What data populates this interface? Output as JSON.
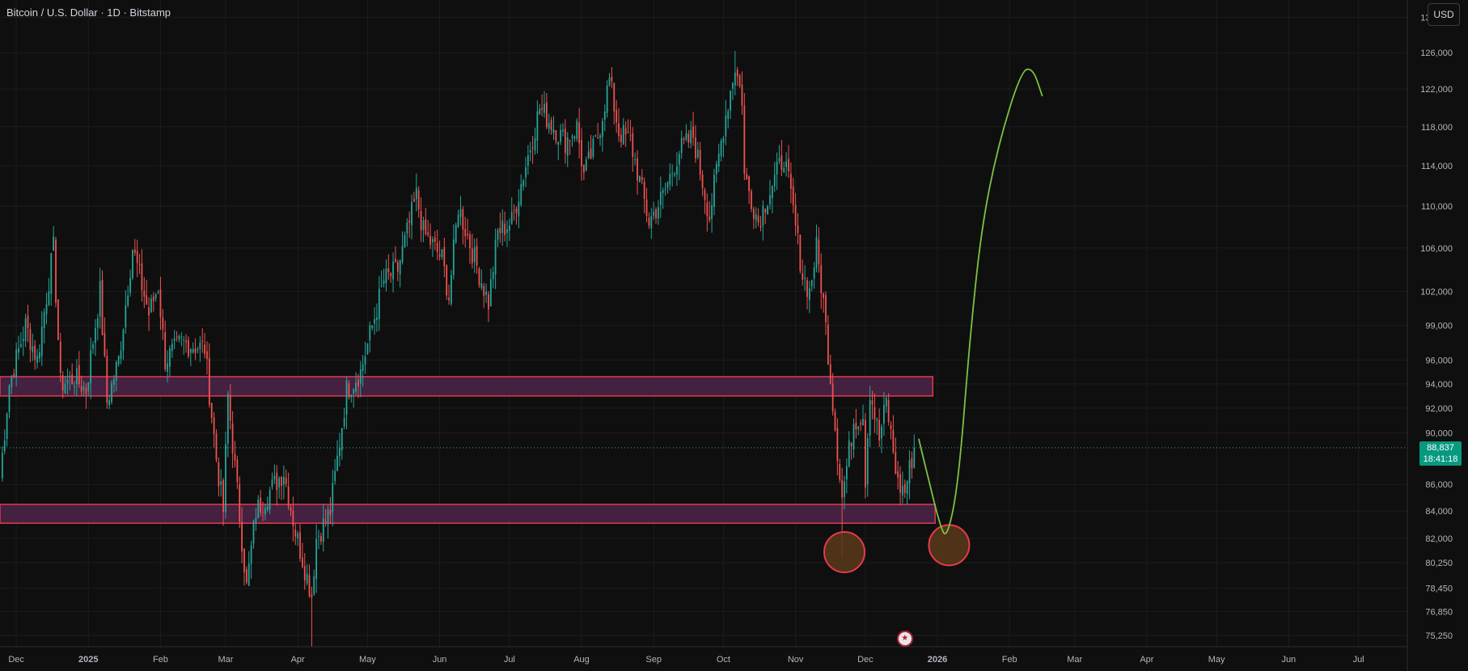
{
  "header": {
    "title": "Bitcoin / U.S. Dollar · 1D · Bitstamp",
    "currency_button": "USD"
  },
  "last_price": {
    "price": "88,837",
    "countdown": "18:41:18",
    "color": "#089981"
  },
  "colors": {
    "up": "#26a69a",
    "down": "#ef5350",
    "zone_fill": "#4a2446",
    "zone_border": "#e0394e",
    "projection": "#7cc242",
    "background": "#0f0f0f",
    "grid": "#1c1c1c"
  },
  "icons": {
    "event": "us-flag-economic-event-icon"
  },
  "chart_data": {
    "type": "candlestick",
    "title": "Bitcoin / U.S. Dollar · 1D · Bitstamp",
    "y_scale": "log",
    "ylim": [
      74500,
      132000
    ],
    "xlim": [
      "2024-11-24",
      "2026-07-22"
    ],
    "y_ticks": [
      "130,000",
      "126,000",
      "122,000",
      "118,000",
      "114,000",
      "110,000",
      "106,000",
      "102,000",
      "99,000",
      "96,000",
      "94,000",
      "92,000",
      "90,000",
      "86,000",
      "84,000",
      "82,000",
      "80,250",
      "78,450",
      "76,850",
      "75,250"
    ],
    "x_ticks": [
      {
        "label": "Dec",
        "date": "2024-12-01"
      },
      {
        "label": "2025",
        "date": "2025-01-01"
      },
      {
        "label": "Feb",
        "date": "2025-02-01"
      },
      {
        "label": "Mar",
        "date": "2025-03-01"
      },
      {
        "label": "Apr",
        "date": "2025-04-01"
      },
      {
        "label": "May",
        "date": "2025-05-01"
      },
      {
        "label": "Jun",
        "date": "2025-06-01"
      },
      {
        "label": "Jul",
        "date": "2025-07-01"
      },
      {
        "label": "Aug",
        "date": "2025-08-01"
      },
      {
        "label": "Sep",
        "date": "2025-09-01"
      },
      {
        "label": "Oct",
        "date": "2025-10-01"
      },
      {
        "label": "Nov",
        "date": "2025-11-01"
      },
      {
        "label": "Dec",
        "date": "2025-12-01"
      },
      {
        "label": "2026",
        "date": "2026-01-01"
      },
      {
        "label": "Feb",
        "date": "2026-02-01"
      },
      {
        "label": "Mar",
        "date": "2026-03-01"
      },
      {
        "label": "Apr",
        "date": "2026-04-01"
      },
      {
        "label": "May",
        "date": "2026-05-01"
      },
      {
        "label": "Jun",
        "date": "2026-06-01"
      },
      {
        "label": "Jul",
        "date": "2026-07-01"
      }
    ],
    "price_anchors": [
      [
        "2024-11-24",
        86500
      ],
      [
        "2024-11-28",
        94000
      ],
      [
        "2024-12-05",
        99000
      ],
      [
        "2024-12-10",
        96000
      ],
      [
        "2024-12-17",
        106000
      ],
      [
        "2024-12-20",
        94000
      ],
      [
        "2024-12-26",
        94500
      ],
      [
        "2024-12-31",
        93500
      ],
      [
        "2025-01-06",
        102000
      ],
      [
        "2025-01-09",
        92500
      ],
      [
        "2025-01-14",
        96000
      ],
      [
        "2025-01-20",
        106000
      ],
      [
        "2025-01-27",
        100000
      ],
      [
        "2025-01-31",
        102500
      ],
      [
        "2025-02-03",
        96000
      ],
      [
        "2025-02-10",
        97500
      ],
      [
        "2025-02-20",
        97000
      ],
      [
        "2025-02-25",
        88000
      ],
      [
        "2025-02-28",
        84000
      ],
      [
        "2025-03-02",
        93000
      ],
      [
        "2025-03-10",
        78500
      ],
      [
        "2025-03-14",
        84000
      ],
      [
        "2025-03-20",
        85500
      ],
      [
        "2025-03-26",
        87000
      ],
      [
        "2025-03-31",
        82500
      ],
      [
        "2025-04-07",
        78000
      ],
      [
        "2025-04-09",
        82000
      ],
      [
        "2025-04-15",
        84000
      ],
      [
        "2025-04-22",
        93500
      ],
      [
        "2025-04-28",
        95000
      ],
      [
        "2025-05-08",
        103000
      ],
      [
        "2025-05-14",
        104000
      ],
      [
        "2025-05-22",
        111000
      ],
      [
        "2025-05-25",
        107500
      ],
      [
        "2025-06-02",
        105000
      ],
      [
        "2025-06-05",
        101500
      ],
      [
        "2025-06-09",
        110000
      ],
      [
        "2025-06-16",
        105000
      ],
      [
        "2025-06-22",
        101000
      ],
      [
        "2025-06-26",
        107500
      ],
      [
        "2025-07-02",
        108500
      ],
      [
        "2025-07-10",
        116000
      ],
      [
        "2025-07-14",
        120000
      ],
      [
        "2025-07-20",
        118000
      ],
      [
        "2025-07-25",
        116500
      ],
      [
        "2025-07-30",
        118000
      ],
      [
        "2025-08-02",
        113000
      ],
      [
        "2025-08-08",
        117000
      ],
      [
        "2025-08-13",
        123000
      ],
      [
        "2025-08-17",
        117500
      ],
      [
        "2025-08-22",
        116500
      ],
      [
        "2025-08-30",
        108500
      ],
      [
        "2025-09-05",
        111000
      ],
      [
        "2025-09-12",
        115500
      ],
      [
        "2025-09-18",
        117000
      ],
      [
        "2025-09-25",
        109000
      ],
      [
        "2025-10-01",
        118000
      ],
      [
        "2025-10-06",
        124500
      ],
      [
        "2025-10-09",
        121000
      ],
      [
        "2025-10-10",
        113000
      ],
      [
        "2025-10-16",
        108500
      ],
      [
        "2025-10-20",
        111000
      ],
      [
        "2025-10-27",
        115000
      ],
      [
        "2025-10-31",
        109500
      ],
      [
        "2025-11-04",
        103500
      ],
      [
        "2025-11-07",
        102000
      ],
      [
        "2025-11-10",
        106000
      ],
      [
        "2025-11-13",
        101000
      ],
      [
        "2025-11-17",
        92500
      ],
      [
        "2025-11-21",
        85000
      ],
      [
        "2025-11-26",
        91000
      ],
      [
        "2025-11-30",
        91500
      ],
      [
        "2025-12-01",
        86500
      ],
      [
        "2025-12-03",
        93500
      ],
      [
        "2025-12-07",
        89500
      ],
      [
        "2025-12-10",
        92500
      ],
      [
        "2025-12-15",
        86000
      ],
      [
        "2025-12-18",
        85500
      ],
      [
        "2025-12-22",
        88837
      ]
    ],
    "wick_extremes": [
      {
        "date": "2025-04-07",
        "low": 74500
      },
      {
        "date": "2025-10-06",
        "high": 126200
      },
      {
        "date": "2025-08-14",
        "high": 124400
      },
      {
        "date": "2025-11-21",
        "low": 80600
      }
    ],
    "last_close": 88837,
    "zones": [
      {
        "start": "2024-11-24",
        "end": "2025-12-30",
        "low": 93000,
        "high": 94600
      },
      {
        "start": "2024-11-24",
        "end": "2025-12-31",
        "low": 83100,
        "high": 84500
      }
    ],
    "circles": [
      {
        "date": "2025-11-22",
        "price": 81000
      },
      {
        "date": "2026-01-06",
        "price": 81500
      }
    ],
    "projection_path": [
      [
        "2025-12-24",
        89500
      ],
      [
        "2025-12-28",
        86500
      ],
      [
        "2026-01-02",
        83000
      ],
      [
        "2026-01-05",
        81900
      ],
      [
        "2026-01-10",
        86000
      ],
      [
        "2026-01-15",
        98000
      ],
      [
        "2026-01-20",
        108000
      ],
      [
        "2026-01-27",
        116000
      ],
      [
        "2026-02-06",
        124000
      ],
      [
        "2026-02-11",
        124300
      ],
      [
        "2026-02-15",
        121300
      ]
    ],
    "event_marker": {
      "date": "2025-12-18"
    }
  }
}
